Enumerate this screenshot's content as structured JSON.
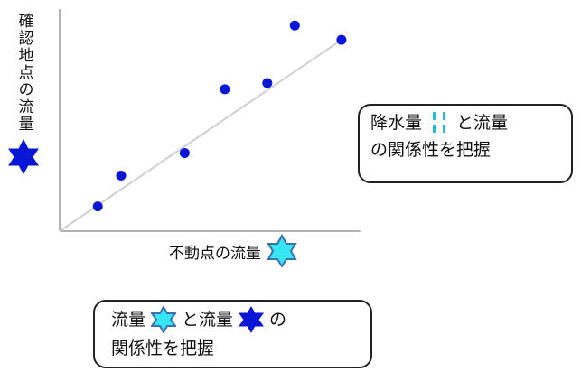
{
  "chart_data": {
    "type": "scatter",
    "title": "",
    "xlabel": "不動点の流量",
    "ylabel": "確認地点の流量",
    "grid": false,
    "legend": "none",
    "points": [
      {
        "x": 0.9,
        "y": 0.6
      },
      {
        "x": 1.45,
        "y": 1.35
      },
      {
        "x": 2.95,
        "y": 1.9
      },
      {
        "x": 3.9,
        "y": 3.45
      },
      {
        "x": 4.9,
        "y": 3.6
      },
      {
        "x": 5.55,
        "y": 5.0
      },
      {
        "x": 6.65,
        "y": 4.65
      }
    ],
    "trendline": {
      "x": [
        0,
        6.65
      ],
      "y": [
        0,
        4.65
      ]
    },
    "xlim": [
      0,
      7.1
    ],
    "ylim": [
      0,
      5.4
    ],
    "colors": {
      "points": "#0a16d6",
      "trendline": "#cfcfcf",
      "axes": "#9a9a9a"
    }
  },
  "legend_icons": {
    "x_axis_icon": {
      "shape": "hexagram",
      "fill": "#36e6f2",
      "stroke": "#3a6fb0"
    },
    "y_axis_icon": {
      "shape": "hexagram",
      "fill": "#0a16d6",
      "stroke": "#0a16d6"
    },
    "rain_icon": {
      "shape": "rain-dashes",
      "color": "#22b8e0"
    }
  },
  "callouts": {
    "right": {
      "line1_a": "降水量",
      "line1_b": "と流量",
      "line2": "の関係性を把握"
    },
    "bottom": {
      "line1_a": "流量",
      "line1_b": "と流量",
      "line1_c": "の",
      "line2": "関係性を把握"
    }
  }
}
